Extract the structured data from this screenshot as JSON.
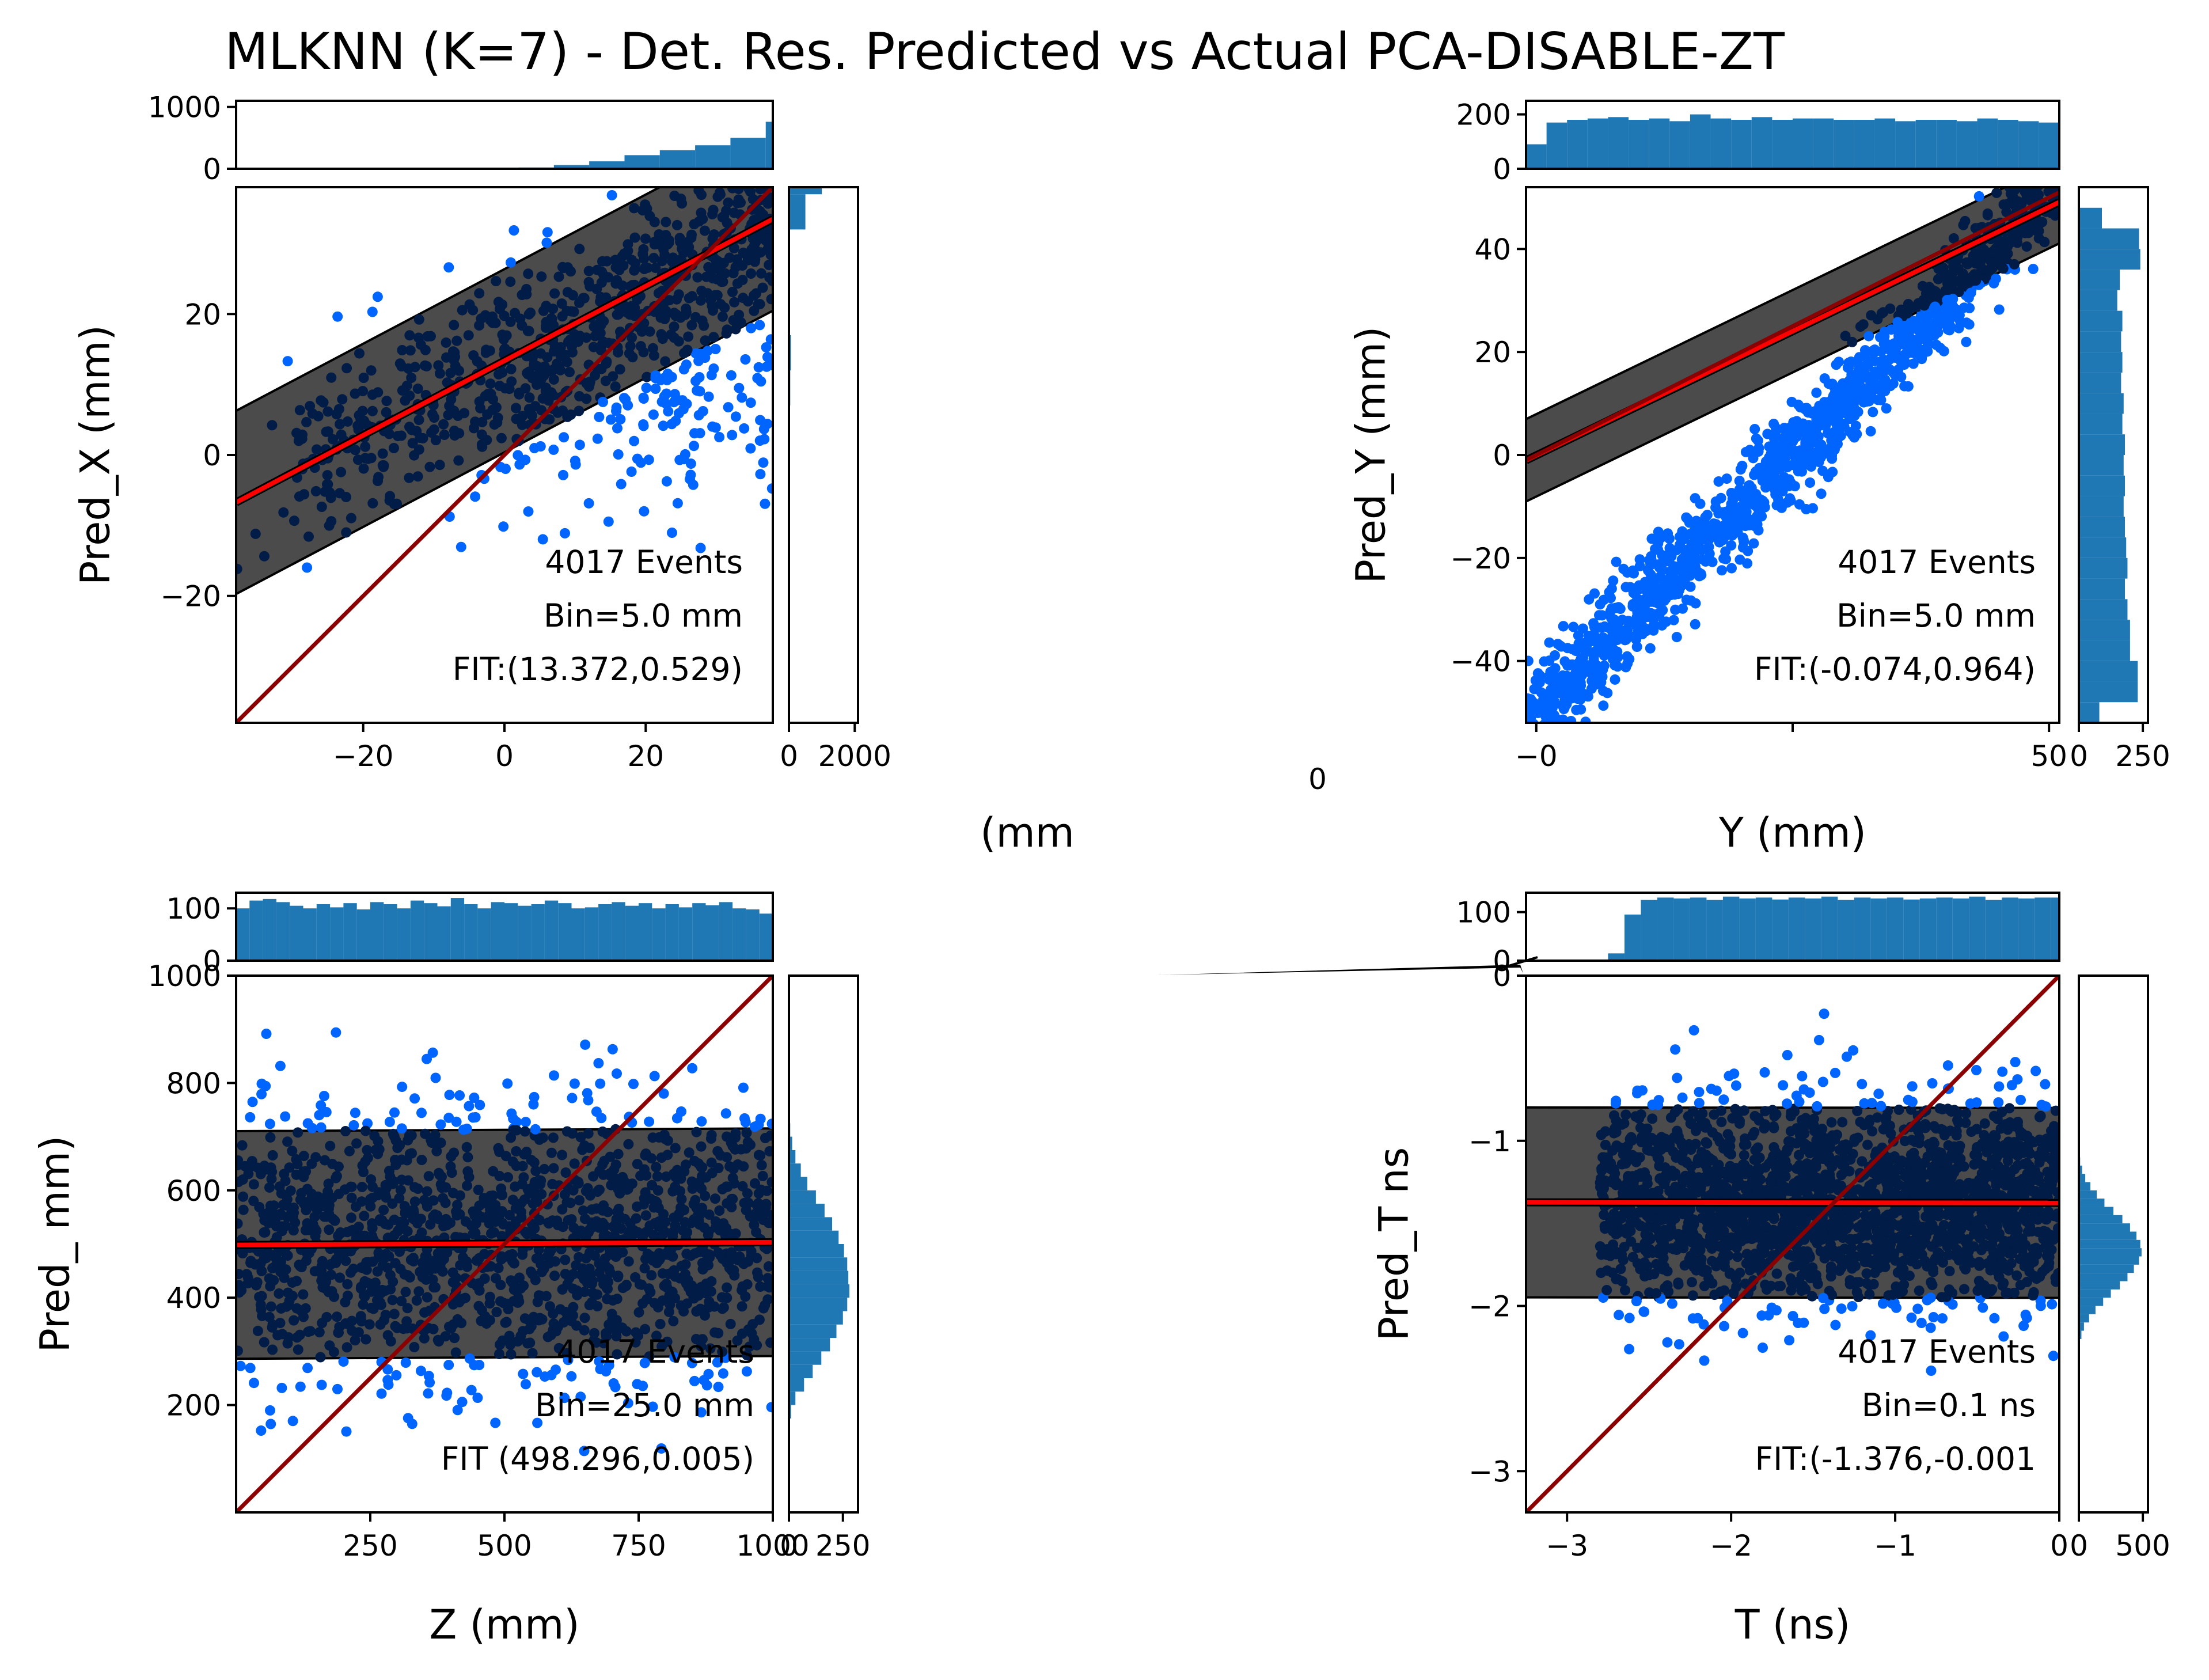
{
  "title": "MLKNN (K=7) - Det. Res. Predicted vs Actual PCA-DISABLE-ZT",
  "colors": {
    "scatter": "#0064ff",
    "band_fill": "#4b4b4b",
    "band_dense": "#011c46",
    "fit_line": "#ff0000",
    "diag_line": "#8b0000",
    "hist": "#1f77b4"
  },
  "stray_labels": {
    "zero": "0",
    "mm": "(mm"
  },
  "chart_data": [
    {
      "type": "scatter",
      "id": "x",
      "xlabel": "",
      "ylabel": "Pred_X (mm)",
      "xlim": [
        -38,
        38
      ],
      "ylim": [
        -38,
        38
      ],
      "xticks": [
        -20,
        0,
        20
      ],
      "xtick_labels": [
        "−20",
        "0",
        "20"
      ],
      "yticks": [
        -20,
        0,
        20
      ],
      "ytick_labels": [
        "−20",
        "0",
        "20"
      ],
      "fit": {
        "intercept": 13.372,
        "slope": 0.529
      },
      "band_halfwidth": 13,
      "annotations": [
        "4017 Events",
        "Bin=5.0 mm",
        "FIT:(13.372,0.529)"
      ],
      "top_hist": {
        "ylim": [
          0,
          1100
        ],
        "yticks": [
          0,
          1000
        ],
        "ytick_labels": [
          "0",
          "1000"
        ],
        "edges_start": -38,
        "bin": 5,
        "values": [
          0,
          0,
          0,
          0,
          0,
          0,
          0,
          5,
          20,
          60,
          120,
          220,
          300,
          380,
          500,
          760,
          1050
        ]
      },
      "right_hist": {
        "xlim": [
          0,
          2100
        ],
        "xticks": [
          0,
          2000
        ],
        "xtick_labels": [
          "0",
          "2000"
        ],
        "edges_start": -38,
        "bin": 5,
        "values": [
          0,
          0,
          0,
          0,
          0,
          0,
          0,
          0,
          0,
          40,
          60,
          30,
          20,
          10,
          500,
          1000,
          0
        ]
      },
      "sample": {
        "n": 900,
        "range": [
          -38,
          38
        ],
        "seed": 11
      }
    },
    {
      "type": "scatter",
      "id": "y",
      "xlabel": "Y (mm)",
      "ylabel": "Pred_Y (mm)",
      "xlim": [
        -1,
        51
      ],
      "ylim": [
        -52,
        52
      ],
      "xticks": [
        0,
        25,
        50
      ],
      "xtick_labels": [
        "−0",
        "",
        "50"
      ],
      "yticks": [
        -40,
        -20,
        0,
        20,
        40
      ],
      "ytick_labels": [
        "−40",
        "−20",
        "0",
        "20",
        "40"
      ],
      "fit": {
        "intercept": -0.074,
        "slope": 0.964
      },
      "band_halfwidth": 8,
      "annotations": [
        "4017 Events",
        "Bin=5.0 mm",
        "FIT:(-0.074,0.964)"
      ],
      "top_hist": {
        "ylim": [
          0,
          250
        ],
        "yticks": [
          0,
          200
        ],
        "ytick_labels": [
          "0",
          "200"
        ],
        "edges_start": -1,
        "bin": 2,
        "values": [
          90,
          170,
          180,
          185,
          190,
          180,
          185,
          175,
          200,
          185,
          180,
          190,
          180,
          185,
          185,
          180,
          180,
          185,
          175,
          180,
          180,
          175,
          185,
          180,
          175,
          170
        ]
      },
      "right_hist": {
        "xlim": [
          0,
          270
        ],
        "xticks": [
          0,
          250
        ],
        "xtick_labels": [
          "0",
          "250"
        ],
        "edges_start": -52,
        "bin": 4,
        "values": [
          80,
          230,
          230,
          200,
          200,
          190,
          180,
          190,
          185,
          180,
          175,
          180,
          175,
          180,
          170,
          175,
          165,
          170,
          165,
          170,
          150,
          160,
          240,
          235,
          90,
          0
        ]
      },
      "sample": {
        "n": 1400,
        "range": [
          -1,
          51
        ],
        "seed": 23
      }
    },
    {
      "type": "scatter",
      "id": "z",
      "xlabel": "Z (mm)",
      "ylabel": "Pred_ mm)",
      "xlim": [
        0,
        1000
      ],
      "ylim": [
        0,
        1000
      ],
      "xticks": [
        250,
        500,
        750,
        1000
      ],
      "xtick_labels": [
        "250",
        "500",
        "750",
        "1000"
      ],
      "yticks": [
        200,
        400,
        600,
        800,
        1000
      ],
      "ytick_labels": [
        "200",
        "400",
        "600",
        "800",
        "1000"
      ],
      "fit": {
        "intercept": 498.296,
        "slope": 0.005
      },
      "band_halfwidth": 212,
      "annotations": [
        "4017 Events",
        "Bin=25.0 mm",
        "FIT  (498.296,0.005)"
      ],
      "top_hist": {
        "ylim": [
          0,
          130
        ],
        "yticks": [
          0,
          100
        ],
        "ytick_labels": [
          "0",
          "100"
        ],
        "edges_start": 0,
        "bin": 25,
        "values": [
          100,
          115,
          118,
          112,
          105,
          100,
          108,
          102,
          110,
          98,
          112,
          108,
          100,
          115,
          110,
          104,
          120,
          108,
          100,
          112,
          110,
          105,
          108,
          115,
          110,
          100,
          102,
          108,
          112,
          105,
          110,
          100,
          108,
          102,
          110,
          106,
          112,
          100,
          98,
          90
        ]
      },
      "right_hist": {
        "xlim": [
          0,
          320
        ],
        "xticks": [
          0,
          250
        ],
        "xtick_labels": [
          "0",
          "250"
        ],
        "edges_start": 175,
        "bin": 25,
        "values": [
          10,
          30,
          70,
          110,
          150,
          190,
          220,
          250,
          270,
          280,
          275,
          270,
          255,
          230,
          200,
          165,
          125,
          85,
          55,
          30,
          15,
          6
        ]
      },
      "sample": {
        "n": 1500,
        "range": [
          0,
          1000
        ],
        "seed": 37
      }
    },
    {
      "type": "scatter",
      "id": "t",
      "xlabel": "T (ns)",
      "ylabel": "Pred_T ns",
      "xlim": [
        -3.25,
        0
      ],
      "ylim": [
        -3.25,
        0
      ],
      "xticks": [
        -3,
        -2,
        -1,
        0
      ],
      "xtick_labels": [
        "−3",
        "−2",
        "−1",
        "0"
      ],
      "yticks": [
        -3,
        -2,
        -1,
        0
      ],
      "ytick_labels": [
        "−3",
        "−2",
        "−1",
        "0"
      ],
      "fit": {
        "intercept": -1.376,
        "slope": -0.001
      },
      "band_halfwidth": 0.575,
      "annotations": [
        "4017 Events",
        "Bin=0.1 ns",
        "FIT:(-1.376,-0.001"
      ],
      "top_hist": {
        "ylim": [
          0,
          140
        ],
        "yticks": [
          0,
          100
        ],
        "ytick_labels": [
          "0",
          "100"
        ],
        "edges_start": -3.25,
        "bin": 0.1,
        "values": [
          0,
          0,
          0,
          0,
          0,
          15,
          95,
          125,
          130,
          128,
          130,
          125,
          132,
          128,
          130,
          126,
          130,
          128,
          132,
          125,
          130,
          128,
          130,
          126,
          128,
          130,
          128,
          132,
          125,
          130,
          128,
          130,
          130
        ]
      },
      "right_hist": {
        "xlim": [
          0,
          540
        ],
        "xticks": [
          0,
          500
        ],
        "xtick_labels": [
          "0",
          "500"
        ],
        "edges_start": -2.2,
        "bin": 0.05,
        "values": [
          20,
          40,
          80,
          130,
          190,
          250,
          320,
          380,
          430,
          470,
          490,
          480,
          450,
          400,
          340,
          270,
          200,
          140,
          90,
          50,
          25,
          10
        ]
      },
      "sample": {
        "n": 2200,
        "range": [
          -2.8,
          0
        ],
        "seed": 51
      }
    }
  ]
}
